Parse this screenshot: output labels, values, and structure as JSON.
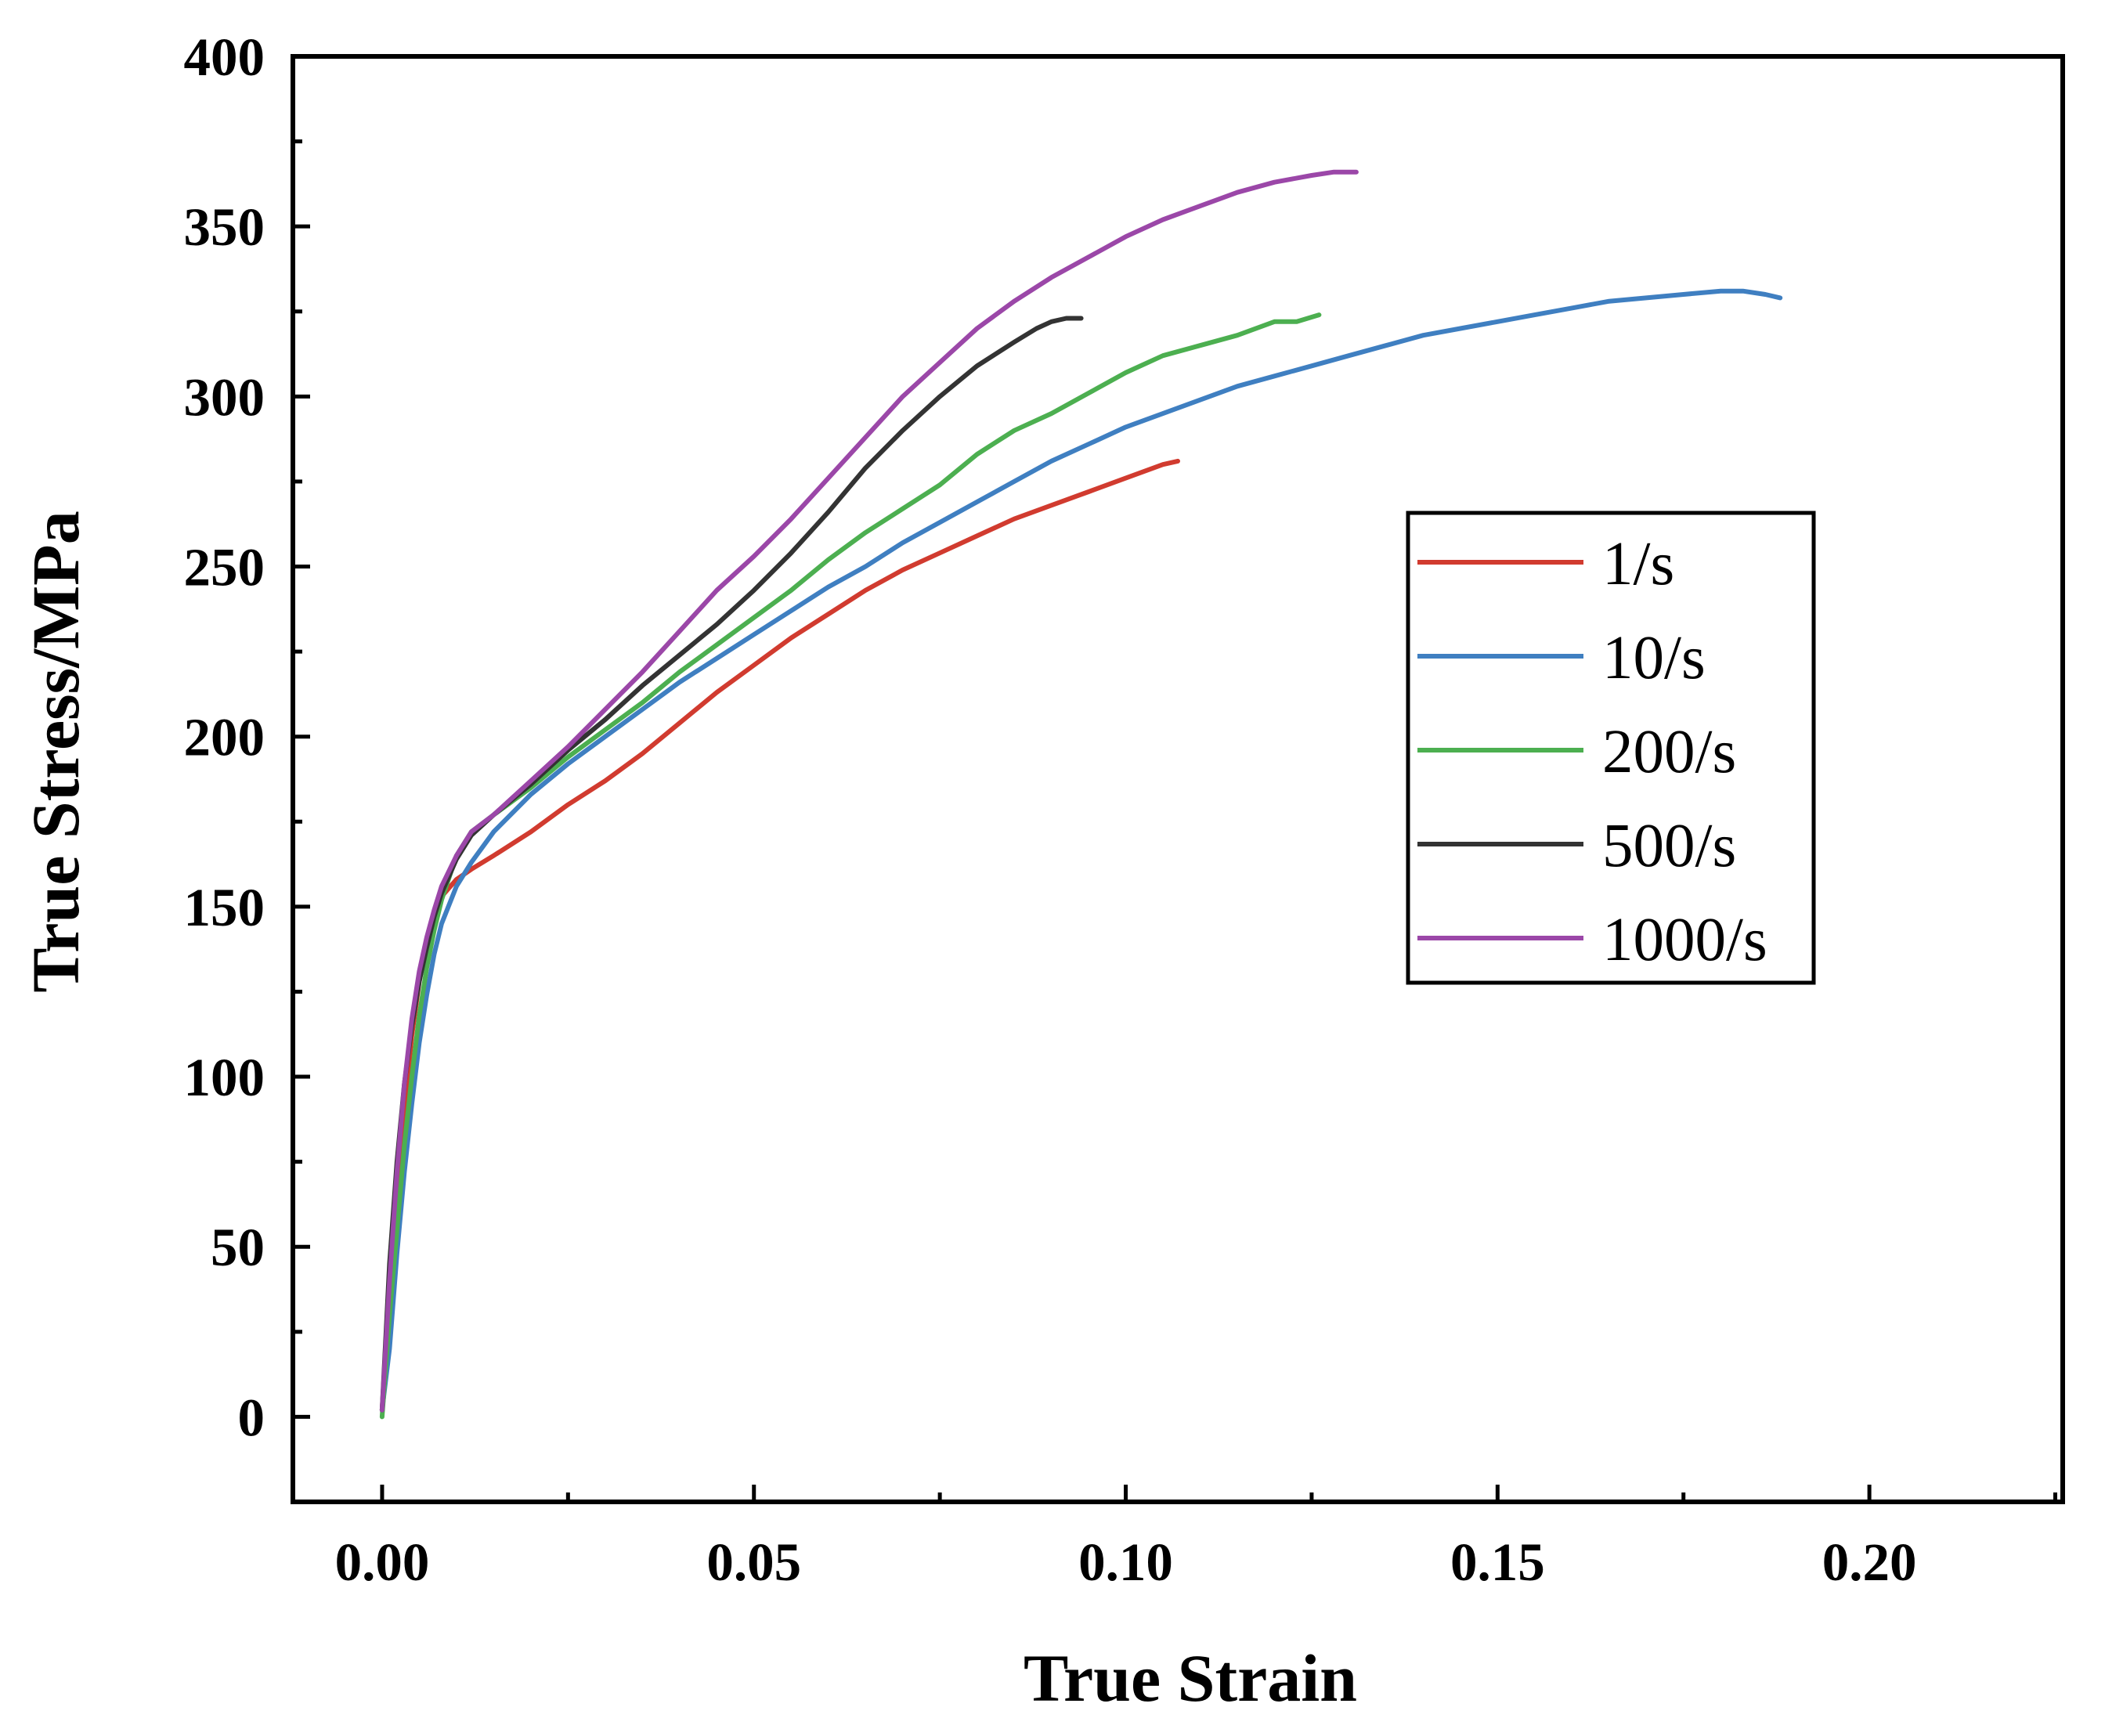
{
  "chart_data": {
    "type": "line",
    "title": "",
    "xlabel": "True Strain",
    "ylabel": "True Stress/MPa",
    "xlim": [
      -0.012,
      0.226
    ],
    "ylim": [
      -25,
      400
    ],
    "xticks": [
      0.0,
      0.05,
      0.1,
      0.15,
      0.2
    ],
    "xtick_labels": [
      "0.00",
      "0.05",
      "0.10",
      "0.15",
      "0.20"
    ],
    "yticks": [
      0,
      50,
      100,
      150,
      200,
      250,
      300,
      350,
      400
    ],
    "ytick_labels": [
      "0",
      "50",
      "100",
      "150",
      "200",
      "250",
      "300",
      "350",
      "400"
    ],
    "legend_position": "right",
    "series": [
      {
        "name": "1/s",
        "color": "#d13b2f",
        "x": [
          0.0,
          0.001,
          0.002,
          0.003,
          0.004,
          0.005,
          0.006,
          0.007,
          0.008,
          0.01,
          0.012,
          0.015,
          0.02,
          0.025,
          0.03,
          0.035,
          0.04,
          0.045,
          0.05,
          0.055,
          0.06,
          0.065,
          0.07,
          0.075,
          0.08,
          0.085,
          0.09,
          0.095,
          0.1,
          0.105,
          0.107
        ],
        "y": [
          2,
          35,
          65,
          90,
          112,
          128,
          140,
          148,
          153,
          158,
          161,
          165,
          172,
          180,
          187,
          195,
          204,
          213,
          221,
          229,
          236,
          243,
          249,
          254,
          259,
          264,
          268,
          272,
          276,
          280,
          281
        ]
      },
      {
        "name": "10/s",
        "color": "#3f7fc1",
        "x": [
          0.0,
          0.001,
          0.002,
          0.003,
          0.004,
          0.005,
          0.006,
          0.007,
          0.008,
          0.01,
          0.012,
          0.015,
          0.02,
          0.025,
          0.03,
          0.035,
          0.04,
          0.045,
          0.05,
          0.055,
          0.06,
          0.065,
          0.07,
          0.075,
          0.08,
          0.085,
          0.09,
          0.095,
          0.1,
          0.105,
          0.11,
          0.115,
          0.12,
          0.125,
          0.13,
          0.135,
          0.14,
          0.145,
          0.15,
          0.155,
          0.16,
          0.165,
          0.17,
          0.175,
          0.18,
          0.183,
          0.186,
          0.188
        ],
        "y": [
          2,
          20,
          48,
          72,
          92,
          110,
          124,
          136,
          145,
          156,
          163,
          172,
          183,
          192,
          200,
          208,
          216,
          223,
          230,
          237,
          244,
          250,
          257,
          263,
          269,
          275,
          281,
          286,
          291,
          295,
          299,
          303,
          306,
          309,
          312,
          315,
          318,
          320,
          322,
          324,
          326,
          328,
          329,
          330,
          331,
          331,
          330,
          329
        ]
      },
      {
        "name": "200/s",
        "color": "#4caf50",
        "x": [
          0.0,
          0.001,
          0.002,
          0.003,
          0.004,
          0.005,
          0.006,
          0.007,
          0.008,
          0.01,
          0.012,
          0.015,
          0.02,
          0.025,
          0.03,
          0.035,
          0.04,
          0.045,
          0.05,
          0.055,
          0.06,
          0.065,
          0.07,
          0.075,
          0.08,
          0.085,
          0.09,
          0.095,
          0.1,
          0.105,
          0.11,
          0.115,
          0.12,
          0.123,
          0.126
        ],
        "y": [
          0,
          30,
          55,
          80,
          100,
          118,
          132,
          143,
          152,
          165,
          172,
          177,
          185,
          194,
          202,
          210,
          219,
          227,
          235,
          243,
          252,
          260,
          267,
          274,
          283,
          290,
          295,
          301,
          307,
          312,
          315,
          318,
          322,
          322,
          324
        ]
      },
      {
        "name": "500/s",
        "color": "#333333",
        "x": [
          0.0,
          0.001,
          0.002,
          0.003,
          0.004,
          0.005,
          0.006,
          0.007,
          0.008,
          0.01,
          0.012,
          0.015,
          0.02,
          0.025,
          0.03,
          0.035,
          0.04,
          0.045,
          0.05,
          0.055,
          0.06,
          0.065,
          0.07,
          0.075,
          0.08,
          0.085,
          0.088,
          0.09,
          0.092,
          0.094
        ],
        "y": [
          2,
          45,
          75,
          98,
          115,
          128,
          138,
          147,
          154,
          164,
          171,
          177,
          186,
          196,
          205,
          215,
          224,
          233,
          243,
          254,
          266,
          279,
          290,
          300,
          309,
          316,
          320,
          322,
          323,
          323
        ]
      },
      {
        "name": "1000/s",
        "color": "#9b47a8",
        "x": [
          0.0,
          0.001,
          0.002,
          0.003,
          0.004,
          0.005,
          0.006,
          0.007,
          0.008,
          0.01,
          0.012,
          0.015,
          0.02,
          0.025,
          0.03,
          0.035,
          0.04,
          0.045,
          0.05,
          0.055,
          0.06,
          0.065,
          0.07,
          0.075,
          0.08,
          0.085,
          0.09,
          0.095,
          0.1,
          0.105,
          0.11,
          0.115,
          0.12,
          0.125,
          0.128,
          0.131
        ],
        "y": [
          2,
          40,
          72,
          98,
          117,
          131,
          141,
          149,
          156,
          165,
          172,
          177,
          187,
          197,
          208,
          219,
          231,
          243,
          253,
          264,
          276,
          288,
          300,
          310,
          320,
          328,
          335,
          341,
          347,
          352,
          356,
          360,
          363,
          365,
          366,
          366
        ]
      }
    ]
  }
}
